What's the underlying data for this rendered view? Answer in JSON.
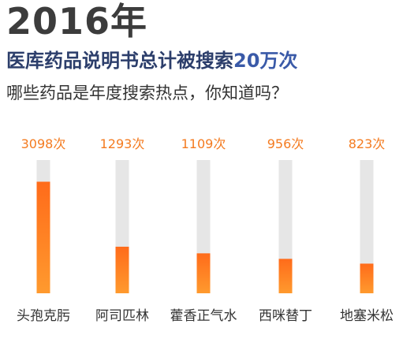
{
  "header": {
    "year": "2016年",
    "headline_main": "医库药品说明书总计被搜索",
    "headline_accent": "20万次",
    "subtitle": "哪些药品是年度搜索热点，你知道吗？"
  },
  "colors": {
    "track": "#e6e6e6",
    "bar_top": "#ff6b1a",
    "bar_bottom": "#ff9a2e",
    "value_label": "#f47b20",
    "category_label": "#333333"
  },
  "chart_data": {
    "type": "bar",
    "categories": [
      "头孢克肟",
      "阿司匹林",
      "藿香正气水",
      "西咪替丁",
      "地塞米松"
    ],
    "values": [
      3098,
      1293,
      1109,
      956,
      823
    ],
    "value_labels": [
      "3098次",
      "1293次",
      "1109次",
      "956次",
      "823次"
    ],
    "ylim": [
      0,
      3700
    ],
    "grid": false,
    "legend": "none"
  }
}
